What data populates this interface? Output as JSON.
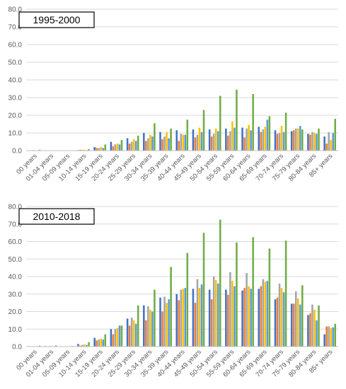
{
  "colors": [
    "#4472c4",
    "#ed7d31",
    "#a5a5a5",
    "#ffc000",
    "#5b9bd5",
    "#70ad47"
  ],
  "chart_data": [
    {
      "type": "bar",
      "title": "1995-2000",
      "ylim": [
        0,
        80
      ],
      "yticks": [
        "0.0",
        "10.0",
        "20.0",
        "30.0",
        "40.0",
        "50.0",
        "60.0",
        "70.0",
        "80.0"
      ],
      "grid": true,
      "categories": [
        "00 years",
        "01-04 years",
        "05-09 years",
        "10-14 years",
        "15-19 years",
        "20-24 years",
        "25-29 years",
        "30-34 years",
        "35-39 years",
        "40-44 years",
        "45-49 years",
        "50-54 years",
        "55-59 years",
        "60-64 years",
        "65-69 years",
        "70-74 years",
        "75-79 years",
        "80-84 years",
        "85+ years"
      ],
      "label_categories": [
        "00 years",
        "01-04 years",
        "05-09 years",
        "10-14 years",
        "15-19 years",
        "20-24 years",
        "25-29 years",
        "30-34 years",
        "35-39 years",
        "40-44 years",
        "45-49 years",
        "50-54 years",
        "55-59 years",
        "60-64 years",
        "65-69 years",
        "70-74 years",
        "75-79 years",
        "80-84 years",
        "85+ years"
      ],
      "series": [
        {
          "values": [
            0.2,
            0,
            0,
            0.3,
            2.0,
            5.0,
            7.0,
            10.0,
            10.5,
            11.5,
            12.0,
            12.0,
            12.5,
            13.0,
            13.5,
            11.5,
            11.0,
            9.5,
            8.0
          ]
        },
        {
          "values": [
            0.1,
            0,
            0,
            0.5,
            1.5,
            2.5,
            4.0,
            5.5,
            6.5,
            5.5,
            7.5,
            8.0,
            8.5,
            7.5,
            10.5,
            9.5,
            11.5,
            9.0,
            4.0
          ]
        },
        {
          "values": [
            0.3,
            0.1,
            0,
            0.4,
            1.5,
            3.5,
            5.0,
            7.0,
            8.0,
            9.5,
            9.0,
            9.5,
            11.0,
            12.5,
            12.0,
            10.0,
            12.5,
            10.5,
            10.5
          ]
        },
        {
          "values": [
            0.2,
            0.1,
            0,
            0.5,
            2.0,
            4.0,
            6.5,
            9.0,
            10.5,
            9.0,
            13.0,
            12.5,
            16.5,
            14.5,
            13.5,
            14.0,
            12.5,
            10.0,
            6.0
          ]
        },
        {
          "values": [
            0.1,
            0,
            0,
            0.3,
            1.5,
            3.5,
            5.5,
            8.0,
            7.0,
            9.0,
            10.5,
            11.0,
            13.0,
            11.5,
            17.5,
            10.5,
            14.0,
            9.5,
            10.0
          ]
        },
        {
          "values": [
            0.5,
            0.2,
            0.1,
            0.8,
            3.5,
            6.0,
            8.5,
            15.5,
            12.5,
            17.5,
            23.0,
            31.0,
            34.5,
            32.0,
            19.5,
            21.5,
            12.0,
            12.5,
            18.0
          ]
        }
      ]
    },
    {
      "type": "bar",
      "title": "2010-2018",
      "ylim": [
        0,
        80
      ],
      "yticks": [
        "0.0",
        "10.0",
        "20.0",
        "30.0",
        "40.0",
        "50.0",
        "60.0",
        "70.0",
        "80.0"
      ],
      "grid": true,
      "categories": [
        "00 years",
        "01-04 years",
        "05-09 years",
        "10-14 years",
        "15-19 years",
        "20-24 years",
        "25-29 years",
        "30-34 years",
        "35-39 years",
        "40-44 years",
        "45-49 years",
        "50-54 years",
        "55-59 years",
        "60-64 years",
        "65-69 years",
        "70-74 years",
        "75-79 years",
        "80-84 years",
        "85+ years"
      ],
      "label_categories": [
        "00 years",
        "01-04 years",
        "05-09 years",
        "10-14 years",
        "15-19 years",
        "20-24 years",
        "25-29 years",
        "30-34 years",
        "35-39 years",
        "40-44 years",
        "45-49 years",
        "50-54 years",
        "55-59 years",
        "60-64 years",
        "65-69 years",
        "70-74 years",
        "75-79 years",
        "80-84 years",
        "85+ years"
      ],
      "series": [
        {
          "values": [
            0.2,
            0.3,
            0.1,
            1.5,
            5.0,
            10.0,
            16.0,
            23.5,
            28.0,
            30.0,
            33.0,
            32.5,
            32.5,
            32.0,
            33.0,
            27.0,
            24.5,
            18.0,
            7.0
          ]
        },
        {
          "values": [
            0.1,
            0.2,
            0.1,
            0.5,
            3.5,
            7.0,
            12.0,
            15.0,
            20.0,
            26.5,
            25.0,
            27.0,
            29.5,
            33.5,
            34.5,
            28.0,
            24.5,
            19.0,
            11.5
          ]
        },
        {
          "values": [
            0.2,
            0.3,
            0.2,
            1.0,
            4.0,
            10.0,
            16.5,
            23.0,
            28.5,
            32.5,
            38.5,
            40.0,
            42.5,
            42.0,
            38.5,
            36.0,
            31.5,
            24.0,
            11.5
          ]
        },
        {
          "values": [
            0.2,
            0.3,
            0.2,
            1.2,
            4.5,
            10.5,
            15.0,
            21.0,
            25.0,
            33.0,
            33.5,
            38.0,
            37.5,
            34.5,
            37.0,
            33.5,
            27.5,
            21.0,
            10.5
          ]
        },
        {
          "values": [
            0.1,
            0.2,
            0.1,
            0.8,
            4.0,
            12.0,
            13.0,
            20.0,
            27.0,
            33.5,
            35.5,
            36.0,
            34.5,
            33.0,
            37.5,
            31.0,
            24.0,
            15.0,
            11.0
          ]
        },
        {
          "values": [
            0.5,
            0.6,
            0.3,
            2.5,
            7.0,
            12.0,
            23.5,
            32.5,
            45.5,
            53.5,
            65.0,
            72.5,
            59.5,
            62.5,
            56.0,
            60.5,
            35.0,
            23.5,
            13.0
          ]
        }
      ]
    }
  ]
}
